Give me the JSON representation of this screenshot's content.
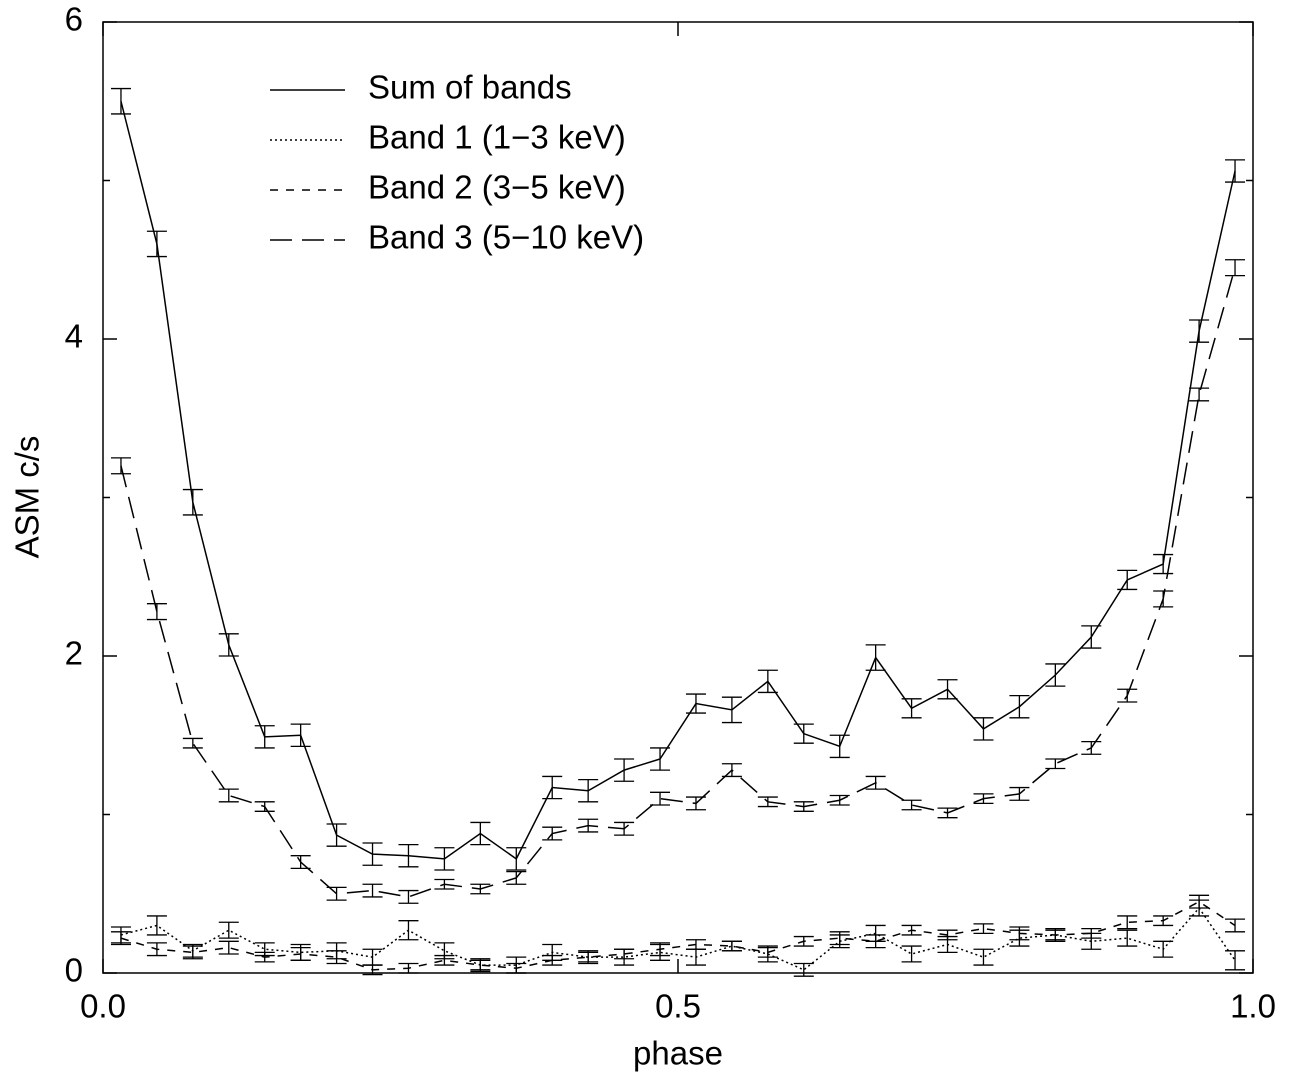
{
  "chart_data": {
    "type": "line",
    "xlabel": "phase",
    "ylabel": "ASM c/s",
    "x": [
      0.015625,
      0.046875,
      0.078125,
      0.109375,
      0.140625,
      0.171875,
      0.203125,
      0.234375,
      0.265625,
      0.296875,
      0.328125,
      0.359375,
      0.390625,
      0.421875,
      0.453125,
      0.484375,
      0.515625,
      0.546875,
      0.578125,
      0.609375,
      0.640625,
      0.671875,
      0.703125,
      0.734375,
      0.765625,
      0.796875,
      0.828125,
      0.859375,
      0.890625,
      0.921875,
      0.953125,
      0.984375
    ],
    "series": [
      {
        "name": "Sum of bands",
        "color": "#000000",
        "dash": "solid",
        "values": [
          5.5,
          4.6,
          2.97,
          2.07,
          1.49,
          1.5,
          0.87,
          0.75,
          0.74,
          0.72,
          0.88,
          0.72,
          1.17,
          1.15,
          1.28,
          1.35,
          1.7,
          1.66,
          1.84,
          1.51,
          1.43,
          1.99,
          1.67,
          1.79,
          1.54,
          1.68,
          1.88,
          2.12,
          2.48,
          2.58,
          4.05,
          5.06
        ],
        "errors": [
          0.08,
          0.08,
          0.08,
          0.07,
          0.07,
          0.07,
          0.07,
          0.07,
          0.07,
          0.07,
          0.07,
          0.07,
          0.07,
          0.07,
          0.07,
          0.07,
          0.06,
          0.08,
          0.07,
          0.06,
          0.07,
          0.08,
          0.06,
          0.06,
          0.07,
          0.07,
          0.07,
          0.07,
          0.06,
          0.06,
          0.07,
          0.07
        ]
      },
      {
        "name": "Band 1 (1−3 keV)",
        "color": "#000000",
        "dash": "dotted",
        "values": [
          0.24,
          0.3,
          0.14,
          0.27,
          0.15,
          0.13,
          0.14,
          0.1,
          0.27,
          0.14,
          0.05,
          0.05,
          0.13,
          0.1,
          0.1,
          0.13,
          0.1,
          0.17,
          0.12,
          0.02,
          0.2,
          0.25,
          0.12,
          0.18,
          0.1,
          0.22,
          0.24,
          0.2,
          0.22,
          0.15,
          0.41,
          0.08
        ],
        "errors": [
          0.05,
          0.06,
          0.04,
          0.05,
          0.04,
          0.05,
          0.05,
          0.05,
          0.06,
          0.05,
          0.04,
          0.05,
          0.05,
          0.04,
          0.05,
          0.05,
          0.05,
          0.03,
          0.05,
          0.04,
          0.04,
          0.05,
          0.05,
          0.05,
          0.05,
          0.05,
          0.04,
          0.05,
          0.05,
          0.05,
          0.05,
          0.06
        ]
      },
      {
        "name": "Band 2 (3−5 keV)",
        "color": "#000000",
        "dash": "dashed",
        "values": [
          0.22,
          0.15,
          0.13,
          0.16,
          0.1,
          0.12,
          0.1,
          0.02,
          0.03,
          0.08,
          0.05,
          0.03,
          0.08,
          0.1,
          0.12,
          0.15,
          0.18,
          0.17,
          0.13,
          0.2,
          0.22,
          0.2,
          0.27,
          0.24,
          0.28,
          0.25,
          0.24,
          0.25,
          0.32,
          0.33,
          0.45,
          0.3
        ],
        "errors": [
          0.04,
          0.04,
          0.04,
          0.04,
          0.03,
          0.04,
          0.04,
          0.03,
          0.03,
          0.03,
          0.03,
          0.03,
          0.03,
          0.03,
          0.03,
          0.04,
          0.03,
          0.03,
          0.03,
          0.03,
          0.04,
          0.04,
          0.03,
          0.03,
          0.03,
          0.04,
          0.03,
          0.03,
          0.04,
          0.03,
          0.04,
          0.04
        ]
      },
      {
        "name": "Band 3 (5−10 keV)",
        "color": "#000000",
        "dash": "longdash",
        "values": [
          3.2,
          2.28,
          1.45,
          1.12,
          1.05,
          0.7,
          0.5,
          0.52,
          0.48,
          0.56,
          0.53,
          0.6,
          0.88,
          0.93,
          0.91,
          1.1,
          1.07,
          1.28,
          1.08,
          1.05,
          1.09,
          1.2,
          1.06,
          1.01,
          1.1,
          1.13,
          1.32,
          1.42,
          1.75,
          2.36,
          3.65,
          4.45
        ],
        "errors": [
          0.05,
          0.05,
          0.03,
          0.04,
          0.03,
          0.04,
          0.04,
          0.04,
          0.04,
          0.03,
          0.03,
          0.04,
          0.04,
          0.04,
          0.04,
          0.04,
          0.04,
          0.04,
          0.03,
          0.03,
          0.03,
          0.04,
          0.03,
          0.03,
          0.03,
          0.04,
          0.03,
          0.04,
          0.04,
          0.05,
          0.04,
          0.05
        ]
      }
    ],
    "xlim": [
      0,
      1
    ],
    "ylim": [
      0,
      6
    ],
    "xticks": [
      {
        "value": 0,
        "label": "0.0"
      },
      0.5,
      {
        "value": 1,
        "label": "1.0"
      }
    ],
    "yticks": [
      0,
      2,
      4,
      6
    ],
    "yminor": [
      1,
      3,
      5
    ],
    "legend": "upper-left"
  }
}
